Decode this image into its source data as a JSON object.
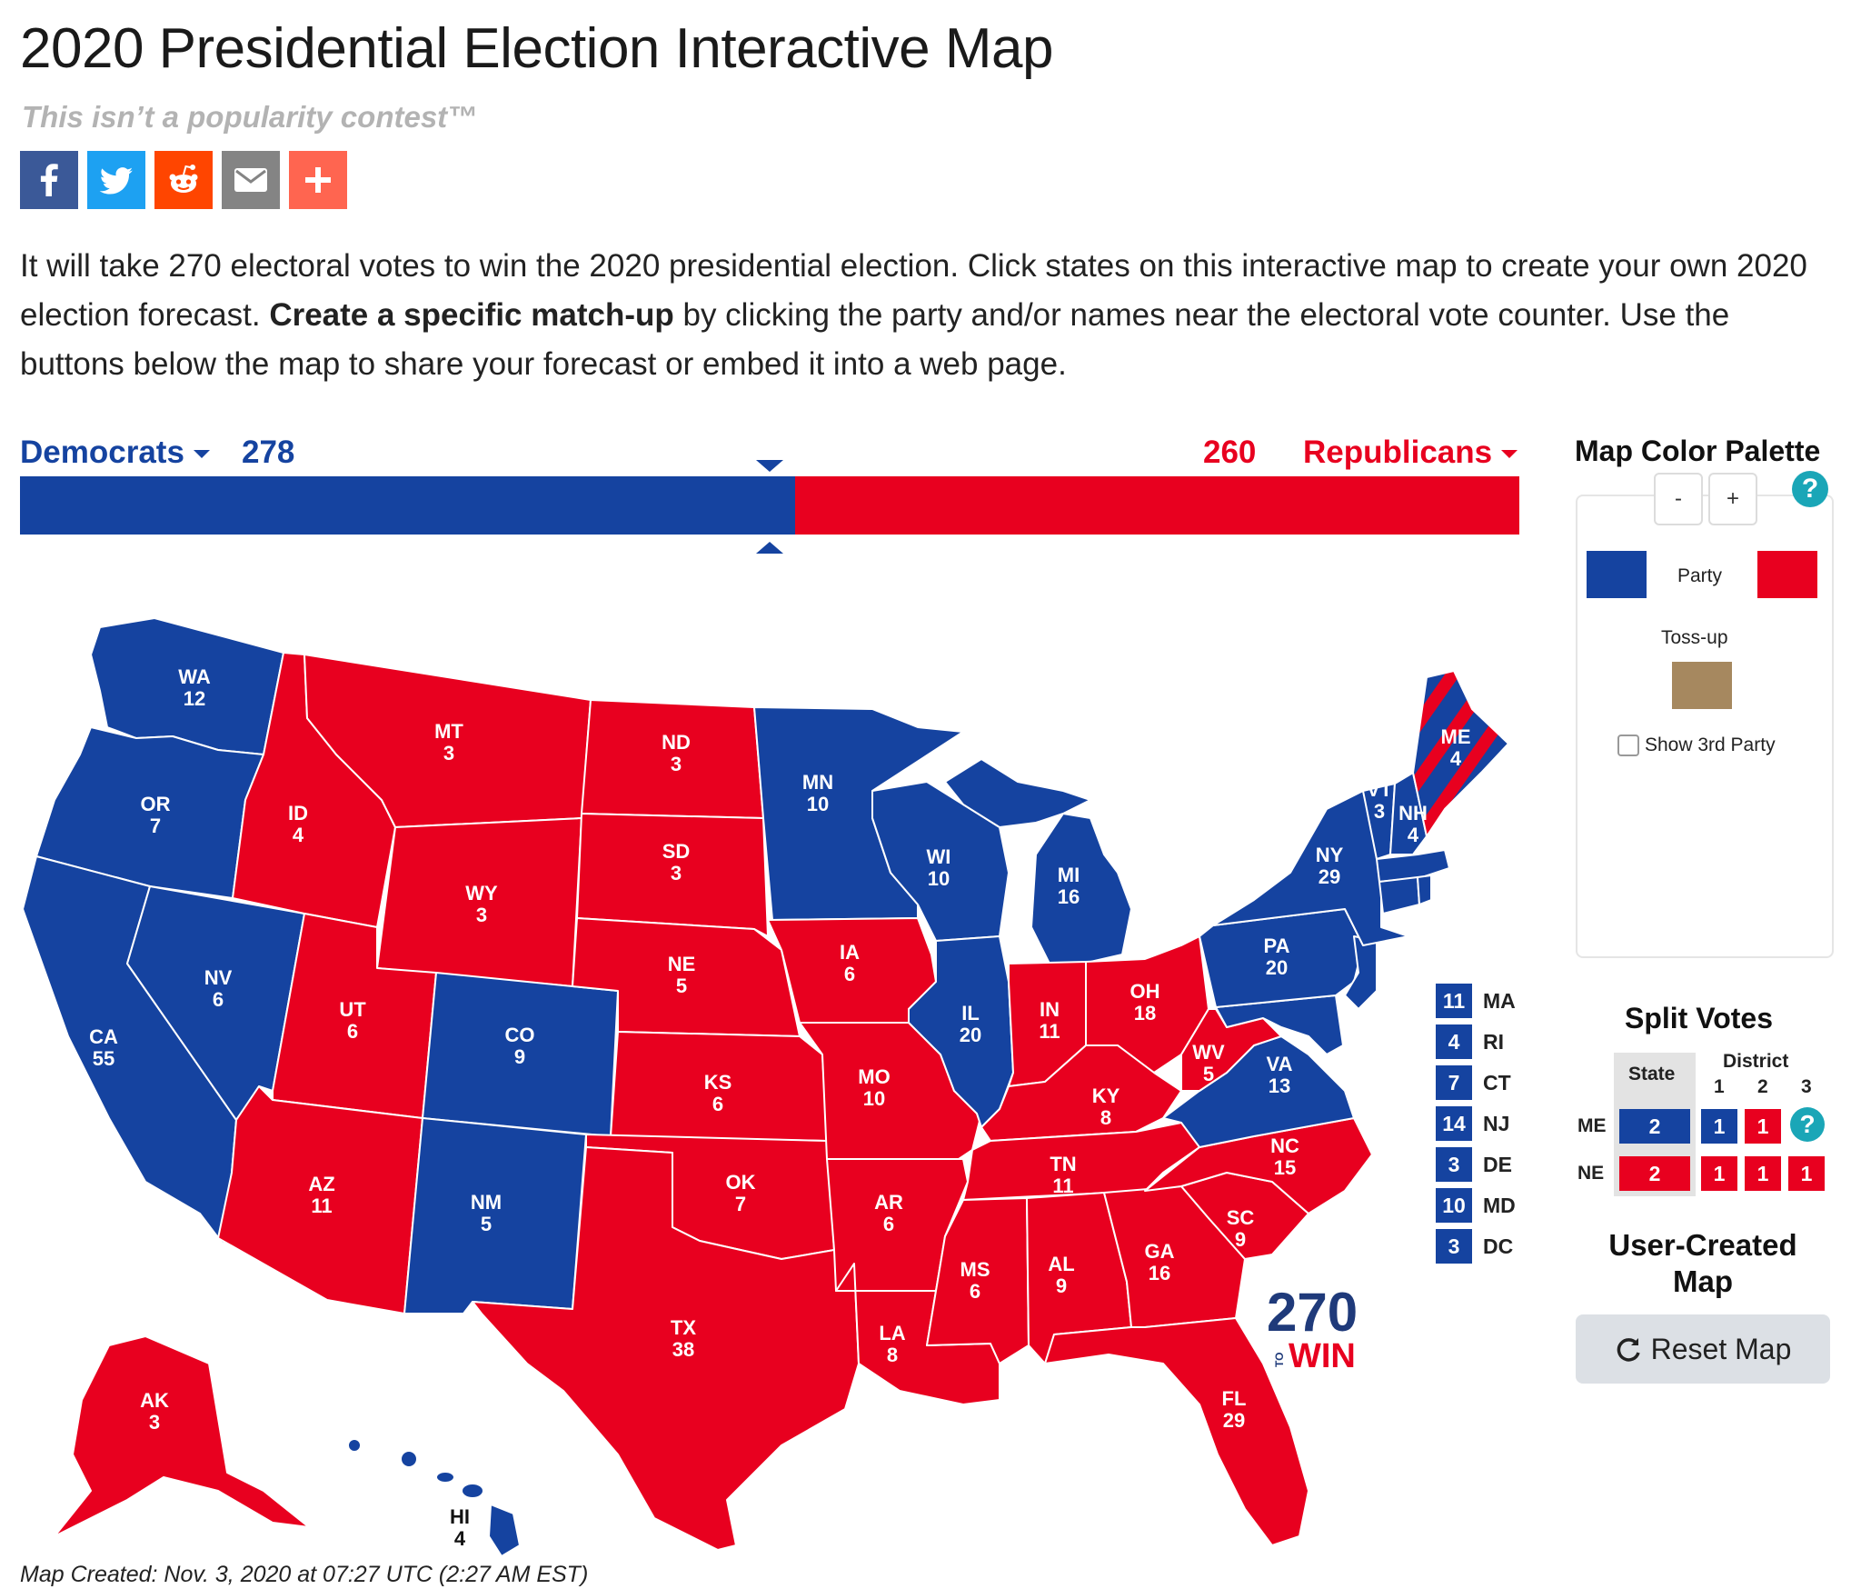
{
  "page": {
    "title": "2020 Presidential Election Interactive Map",
    "subtitle": "This isn’t a popularity contest™",
    "intro_part1": "It will take 270 electoral votes to win the 2020 presidential election. Click states on this interactive map to create your own 2020 election forecast. ",
    "intro_bold": "Create a specific match-up",
    "intro_part2": " by clicking the party and/or names near the electoral vote counter. Use the buttons below the map to share your forecast or embed it into a web page.",
    "footer": "Map Created: Nov. 3, 2020 at 07:27 UTC (2:27 AM EST)"
  },
  "share_buttons": [
    {
      "name": "facebook",
      "icon": "facebook-icon",
      "color": "#3b5998"
    },
    {
      "name": "twitter",
      "icon": "twitter-icon",
      "color": "#1da1f2"
    },
    {
      "name": "reddit",
      "icon": "reddit-icon",
      "color": "#ff4500"
    },
    {
      "name": "email",
      "icon": "email-icon",
      "color": "#848484"
    },
    {
      "name": "more",
      "icon": "plus-icon",
      "color": "#ff6550"
    }
  ],
  "tally": {
    "dem_label": "Democrats",
    "dem_votes": "278",
    "rep_votes": "260",
    "rep_label": "Republicans",
    "dem_share": 0.5167,
    "threshold_share": 0.5
  },
  "colors": {
    "dem": "#1543a0",
    "rep": "#e8001f",
    "tossup": "#a6885f",
    "teal": "#1aa6b7"
  },
  "states": [
    {
      "abbr": "WA",
      "ev": "12",
      "party": "D"
    },
    {
      "abbr": "OR",
      "ev": "7",
      "party": "D"
    },
    {
      "abbr": "CA",
      "ev": "55",
      "party": "D"
    },
    {
      "abbr": "NV",
      "ev": "6",
      "party": "D"
    },
    {
      "abbr": "ID",
      "ev": "4",
      "party": "R"
    },
    {
      "abbr": "MT",
      "ev": "3",
      "party": "R"
    },
    {
      "abbr": "WY",
      "ev": "3",
      "party": "R"
    },
    {
      "abbr": "UT",
      "ev": "6",
      "party": "R"
    },
    {
      "abbr": "AZ",
      "ev": "11",
      "party": "R"
    },
    {
      "abbr": "CO",
      "ev": "9",
      "party": "D"
    },
    {
      "abbr": "NM",
      "ev": "5",
      "party": "D"
    },
    {
      "abbr": "ND",
      "ev": "3",
      "party": "R"
    },
    {
      "abbr": "SD",
      "ev": "3",
      "party": "R"
    },
    {
      "abbr": "NE",
      "ev": "5",
      "party": "R"
    },
    {
      "abbr": "KS",
      "ev": "6",
      "party": "R"
    },
    {
      "abbr": "OK",
      "ev": "7",
      "party": "R"
    },
    {
      "abbr": "TX",
      "ev": "38",
      "party": "R"
    },
    {
      "abbr": "MN",
      "ev": "10",
      "party": "D"
    },
    {
      "abbr": "IA",
      "ev": "6",
      "party": "R"
    },
    {
      "abbr": "MO",
      "ev": "10",
      "party": "R"
    },
    {
      "abbr": "AR",
      "ev": "6",
      "party": "R"
    },
    {
      "abbr": "LA",
      "ev": "8",
      "party": "R"
    },
    {
      "abbr": "WI",
      "ev": "10",
      "party": "D"
    },
    {
      "abbr": "IL",
      "ev": "20",
      "party": "D"
    },
    {
      "abbr": "MI",
      "ev": "16",
      "party": "D"
    },
    {
      "abbr": "IN",
      "ev": "11",
      "party": "R"
    },
    {
      "abbr": "OH",
      "ev": "18",
      "party": "R"
    },
    {
      "abbr": "KY",
      "ev": "8",
      "party": "R"
    },
    {
      "abbr": "TN",
      "ev": "11",
      "party": "R"
    },
    {
      "abbr": "MS",
      "ev": "6",
      "party": "R"
    },
    {
      "abbr": "AL",
      "ev": "9",
      "party": "R"
    },
    {
      "abbr": "GA",
      "ev": "16",
      "party": "R"
    },
    {
      "abbr": "FL",
      "ev": "29",
      "party": "R"
    },
    {
      "abbr": "SC",
      "ev": "9",
      "party": "R"
    },
    {
      "abbr": "NC",
      "ev": "15",
      "party": "R"
    },
    {
      "abbr": "VA",
      "ev": "13",
      "party": "D"
    },
    {
      "abbr": "WV",
      "ev": "5",
      "party": "R"
    },
    {
      "abbr": "PA",
      "ev": "20",
      "party": "D"
    },
    {
      "abbr": "NY",
      "ev": "29",
      "party": "D"
    },
    {
      "abbr": "VT",
      "ev": "3",
      "party": "D"
    },
    {
      "abbr": "NH",
      "ev": "4",
      "party": "D"
    },
    {
      "abbr": "ME",
      "ev": "4",
      "party": "split"
    },
    {
      "abbr": "AK",
      "ev": "3",
      "party": "R"
    },
    {
      "abbr": "HI",
      "ev": "4",
      "party": "D"
    }
  ],
  "small_states": [
    {
      "ev": "11",
      "abbr": "MA"
    },
    {
      "ev": "4",
      "abbr": "RI"
    },
    {
      "ev": "7",
      "abbr": "CT"
    },
    {
      "ev": "14",
      "abbr": "NJ"
    },
    {
      "ev": "3",
      "abbr": "DE"
    },
    {
      "ev": "10",
      "abbr": "MD"
    },
    {
      "ev": "3",
      "abbr": "DC"
    }
  ],
  "watermark": {
    "top": "270",
    "side": "TO",
    "bottom": "WIN"
  },
  "palette": {
    "title": "Map Color Palette",
    "minus": "-",
    "plus": "+",
    "help": "?",
    "party_label": "Party",
    "tossup_label": "Toss-up",
    "third_party_label": "Show 3rd Party"
  },
  "split_votes": {
    "title": "Split Votes",
    "state_header": "State",
    "district_header": "District",
    "district_numbers": [
      "1",
      "2",
      "3"
    ],
    "rows": [
      {
        "state": "ME",
        "statewide": "2",
        "statewide_party": "D",
        "districts": [
          {
            "v": "1",
            "party": "D"
          },
          {
            "v": "1",
            "party": "R"
          }
        ]
      },
      {
        "state": "NE",
        "statewide": "2",
        "statewide_party": "R",
        "districts": [
          {
            "v": "1",
            "party": "R"
          },
          {
            "v": "1",
            "party": "R"
          },
          {
            "v": "1",
            "party": "R"
          }
        ]
      }
    ],
    "help": "?"
  },
  "user_created": {
    "title": "User-Created Map",
    "reset_label": "Reset Map",
    "reset_icon": "refresh-icon"
  }
}
